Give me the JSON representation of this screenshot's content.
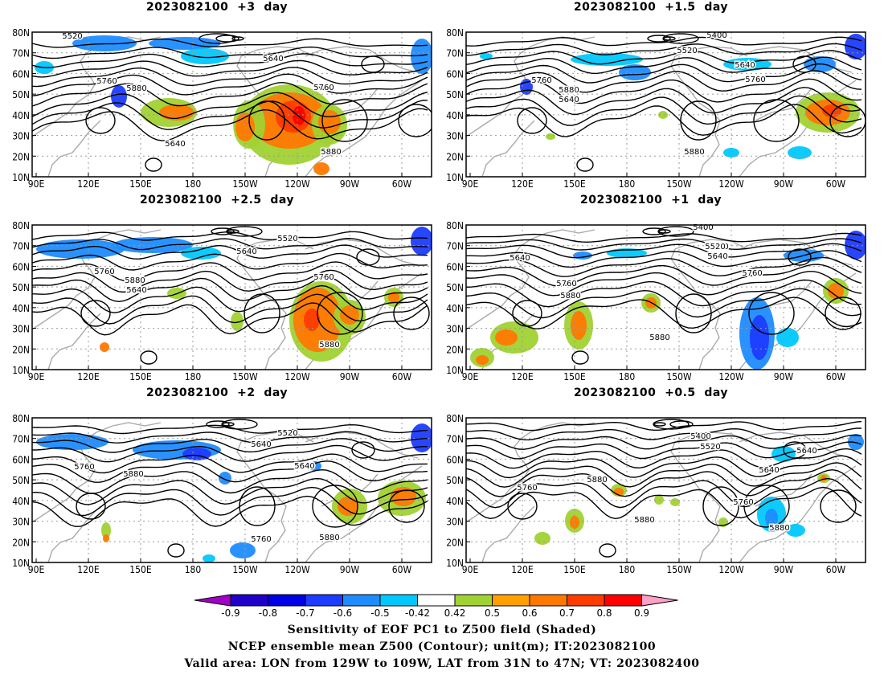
{
  "panels": [
    {
      "title": "2023082100  +3  day",
      "variant": 0,
      "pos_labels": [
        "5520",
        "5640",
        "5760",
        "5880",
        "5640",
        "5760",
        "5880"
      ]
    },
    {
      "title": "2023082100  +1.5  day",
      "variant": 1,
      "pos_labels": [
        "5400",
        "5520",
        "5640",
        "5760",
        "5880",
        "5640",
        "5760",
        "5880"
      ]
    },
    {
      "title": "2023082100  +2.5  day",
      "variant": 2,
      "pos_labels": [
        "5520",
        "5640",
        "5760",
        "5880",
        "5640",
        "5760",
        "5880"
      ]
    },
    {
      "title": "2023082100  +1  day",
      "variant": 3,
      "pos_labels": [
        "5400",
        "5520",
        "5640",
        "5760",
        "5880",
        "5520",
        "5640",
        "5760",
        "5880"
      ]
    },
    {
      "title": "2023082100  +2  day",
      "variant": 4,
      "pos_labels": [
        "5520",
        "5640",
        "5760",
        "5880",
        "5640",
        "5760",
        "5880"
      ]
    },
    {
      "title": "2023082100  +0.5  day",
      "variant": 5,
      "pos_labels": [
        "5400",
        "5520",
        "5640",
        "5760",
        "5880",
        "5640",
        "5760",
        "5880",
        "5880"
      ]
    }
  ],
  "lat_labels": [
    "80N",
    "70N",
    "60N",
    "50N",
    "40N",
    "30N",
    "20N",
    "10N"
  ],
  "lon_labels": [
    "90E",
    "120E",
    "150E",
    "180",
    "150W",
    "120W",
    "90W",
    "60W"
  ],
  "colorbar": {
    "ticks": [
      "-0.9",
      "-0.8",
      "-0.7",
      "-0.6",
      "-0.5",
      "-0.42",
      "0.42",
      "0.5",
      "0.6",
      "0.7",
      "0.8",
      "0.9"
    ],
    "colors": [
      "#a000c8",
      "#1e00c8",
      "#0000e6",
      "#1e3cff",
      "#1e8cff",
      "#00c8ff",
      "#ffffff",
      "#a0d232",
      "#ffa000",
      "#ff7800",
      "#ff3c00",
      "#ff0000",
      "#ffa0c8"
    ]
  },
  "footer": {
    "line1": "Sensitivity of EOF PC1 to Z500 field (Shaded)",
    "line2": "NCEP ensemble mean Z500 (Contour); unit(m); IT:2023082100",
    "line3": "Valid area: LON from 129W to 109W, LAT from 31N to 47N; VT: 2023082400"
  }
}
